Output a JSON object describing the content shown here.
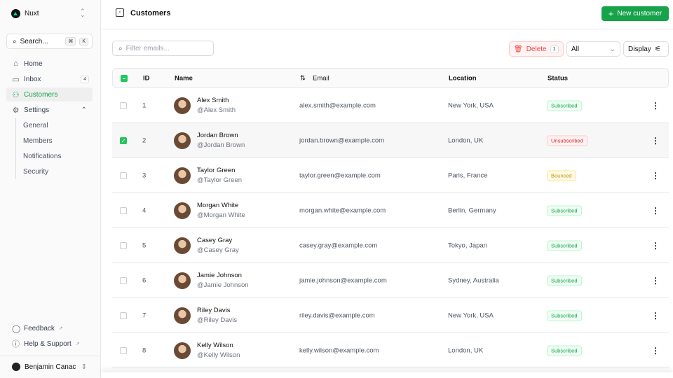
{
  "sidebar": {
    "brand": "Nuxt",
    "search": "Search...",
    "kbd": [
      "⌘",
      "K"
    ],
    "nav": [
      {
        "label": "Home",
        "icon": "home-icon"
      },
      {
        "label": "Inbox",
        "icon": "inbox-icon",
        "badge": "4"
      },
      {
        "label": "Customers",
        "icon": "users-icon"
      },
      {
        "label": "Settings",
        "icon": "gear-icon"
      }
    ],
    "settings_items": [
      "General",
      "Members",
      "Notifications",
      "Security"
    ],
    "footer": [
      "Feedback",
      "Help & Support"
    ],
    "user": "Benjamin Canac"
  },
  "header": {
    "title": "Customers",
    "new_button": "New customer"
  },
  "toolbar": {
    "filter_placeholder": "Filter emails...",
    "delete": "Delete",
    "delete_count": "1",
    "status_filter": "All",
    "display": "Display"
  },
  "table": {
    "columns": [
      "ID",
      "Name",
      "Email",
      "Location",
      "Status"
    ],
    "rows": [
      {
        "id": "1",
        "name": "Alex Smith",
        "handle": "@Alex Smith",
        "email": "alex.smith@example.com",
        "location": "New York, USA",
        "status": "Subscribed",
        "selected": false
      },
      {
        "id": "2",
        "name": "Jordan Brown",
        "handle": "@Jordan Brown",
        "email": "jordan.brown@example.com",
        "location": "London, UK",
        "status": "Unsubscribed",
        "selected": true
      },
      {
        "id": "3",
        "name": "Taylor Green",
        "handle": "@Taylor Green",
        "email": "taylor.green@example.com",
        "location": "Paris, France",
        "status": "Bounced",
        "selected": false
      },
      {
        "id": "4",
        "name": "Morgan White",
        "handle": "@Morgan White",
        "email": "morgan.white@example.com",
        "location": "Berlin, Germany",
        "status": "Subscribed",
        "selected": false
      },
      {
        "id": "5",
        "name": "Casey Gray",
        "handle": "@Casey Gray",
        "email": "casey.gray@example.com",
        "location": "Tokyo, Japan",
        "status": "Subscribed",
        "selected": false
      },
      {
        "id": "6",
        "name": "Jamie Johnson",
        "handle": "@Jamie Johnson",
        "email": "jamie.johnson@example.com",
        "location": "Sydney, Australia",
        "status": "Subscribed",
        "selected": false
      },
      {
        "id": "7",
        "name": "Riley Davis",
        "handle": "@Riley Davis",
        "email": "riley.davis@example.com",
        "location": "New York, USA",
        "status": "Subscribed",
        "selected": false
      },
      {
        "id": "8",
        "name": "Kelly Wilson",
        "handle": "@Kelly Wilson",
        "email": "kelly.wilson@example.com",
        "location": "London, UK",
        "status": "Subscribed",
        "selected": false
      }
    ]
  },
  "colors": {
    "accent": "#16a34a",
    "danger": "#ef4444",
    "warning": "#ca8a04"
  }
}
